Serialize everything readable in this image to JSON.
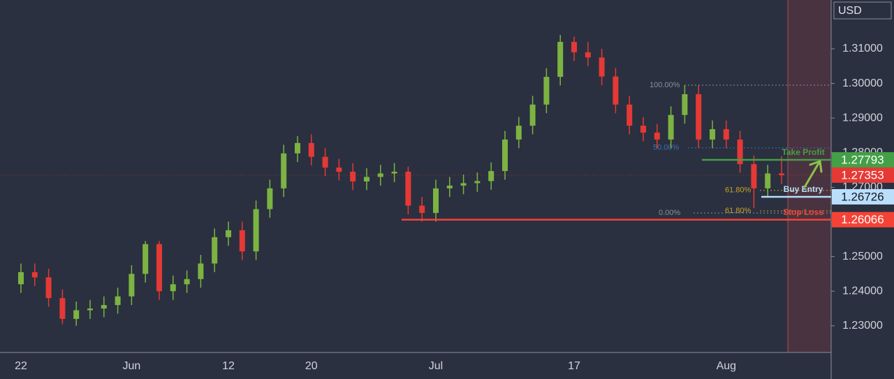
{
  "chart_data": {
    "type": "candlestick",
    "currency": "USD",
    "categories": [
      "22",
      null,
      null,
      null,
      null,
      null,
      null,
      null,
      "Jun",
      null,
      null,
      null,
      null,
      null,
      null,
      "12",
      null,
      null,
      null,
      null,
      null,
      "20",
      null,
      null,
      null,
      null,
      null,
      null,
      null,
      null,
      "Jul",
      null,
      null,
      null,
      null,
      null,
      null,
      null,
      null,
      null,
      "17",
      null,
      null,
      null,
      null,
      null,
      null,
      null,
      null,
      null,
      null,
      "Aug",
      null,
      null,
      null,
      null
    ],
    "open": [
      1.242,
      1.2455,
      1.244,
      1.238,
      1.232,
      1.2345,
      1.235,
      1.236,
      1.2385,
      1.245,
      1.2536,
      1.24,
      1.242,
      1.2435,
      1.248,
      1.2556,
      1.2576,
      1.2515,
      1.2637,
      1.2697,
      1.2798,
      1.2828,
      1.2788,
      1.2757,
      1.2745,
      1.2717,
      1.273,
      1.274,
      1.2745,
      1.2647,
      1.2626,
      1.2697,
      1.2705,
      1.2712,
      1.2718,
      1.2747,
      1.2838,
      1.2878,
      1.2939,
      1.3019,
      1.312,
      1.309,
      1.3075,
      1.302,
      1.2939,
      1.2878,
      1.2858,
      1.2838,
      1.2909,
      1.2969,
      1.2838,
      1.2868,
      1.2838,
      1.2767,
      1.2697,
      1.274
    ],
    "high": [
      1.248,
      1.248,
      1.2465,
      1.2405,
      1.237,
      1.2375,
      1.2385,
      1.241,
      1.2475,
      1.2545,
      1.2545,
      1.2445,
      1.246,
      1.2505,
      1.2581,
      1.2601,
      1.2601,
      1.2662,
      1.2722,
      1.2823,
      1.2848,
      1.2853,
      1.2813,
      1.2782,
      1.277,
      1.2755,
      1.2765,
      1.277,
      1.276,
      1.2672,
      1.2722,
      1.273,
      1.2737,
      1.2743,
      1.2772,
      1.2863,
      1.2903,
      1.2964,
      1.3044,
      1.314,
      1.3135,
      1.312,
      1.31,
      1.3045,
      1.2964,
      1.2903,
      1.2883,
      1.2934,
      1.2995,
      1.2994,
      1.2893,
      1.2893,
      1.2863,
      1.2792,
      1.2765,
      1.279
    ],
    "low": [
      1.2395,
      1.2415,
      1.2355,
      1.2305,
      1.23,
      1.232,
      1.2325,
      1.2335,
      1.236,
      1.2425,
      1.2375,
      1.2375,
      1.2395,
      1.241,
      1.2455,
      1.2531,
      1.249,
      1.249,
      1.2612,
      1.2672,
      1.2773,
      1.2763,
      1.2732,
      1.272,
      1.2692,
      1.2692,
      1.2705,
      1.2715,
      1.2622,
      1.2601,
      1.2601,
      1.2672,
      1.268,
      1.2687,
      1.2693,
      1.2722,
      1.2813,
      1.2853,
      1.2914,
      1.2994,
      1.3065,
      1.305,
      1.2995,
      1.2914,
      1.2853,
      1.2833,
      1.2813,
      1.2813,
      1.2884,
      1.2813,
      1.2813,
      1.2813,
      1.2742,
      1.264,
      1.2672,
      1.271
    ],
    "close": [
      1.2455,
      1.244,
      1.238,
      1.232,
      1.2345,
      1.235,
      1.236,
      1.2385,
      1.245,
      1.2536,
      1.24,
      1.242,
      1.2435,
      1.248,
      1.2556,
      1.2576,
      1.2515,
      1.2637,
      1.2697,
      1.2798,
      1.2828,
      1.2788,
      1.2757,
      1.2745,
      1.2717,
      1.273,
      1.274,
      1.2745,
      1.2647,
      1.2626,
      1.2697,
      1.2705,
      1.2712,
      1.2718,
      1.2747,
      1.2838,
      1.2878,
      1.2939,
      1.3019,
      1.312,
      1.309,
      1.3075,
      1.302,
      1.2939,
      1.2878,
      1.2858,
      1.2838,
      1.2909,
      1.2969,
      1.2838,
      1.2868,
      1.2838,
      1.2767,
      1.2697,
      1.274,
      1.2735
    ],
    "up_color": "#7cb342",
    "down_color": "#e53935",
    "ylim": [
      1.2223,
      1.3241
    ],
    "yticks": [
      {
        "value": 1.23,
        "label": "1.23000"
      },
      {
        "value": 1.24,
        "label": "1.24000"
      },
      {
        "value": 1.25,
        "label": "1.25000"
      },
      {
        "value": 1.26,
        "label": "1.26000"
      },
      {
        "value": 1.27,
        "label": "1.27000"
      },
      {
        "value": 1.28,
        "label": "1.28000"
      },
      {
        "value": 1.29,
        "label": "1.29000"
      },
      {
        "value": 1.3,
        "label": "1.30000"
      },
      {
        "value": 1.31,
        "label": "1.31000"
      }
    ],
    "current_price": 1.27353,
    "current_color": "#e53935",
    "levels": [
      {
        "name": "Take Profit",
        "value": 1.27793,
        "color": "#43a047"
      },
      {
        "name": "Buy Entry",
        "value": 1.26726,
        "color": "#bbdefb"
      },
      {
        "name": "Stop Loss",
        "value": 1.26066,
        "color": "#f44336"
      }
    ],
    "fib": [
      {
        "label": "100.00%",
        "value": 1.2995,
        "color": "#8a8f9c"
      },
      {
        "label": "50.00%",
        "value": 1.2814,
        "color": "#3f6fb0"
      },
      {
        "label": "61.80%",
        "value": 1.2691,
        "color": "#c9a227"
      },
      {
        "label": "61.80%",
        "value": 1.2632,
        "color": "#c9a227"
      },
      {
        "label": "0.00%",
        "value": 1.2626,
        "color": "#8a8f9c"
      }
    ]
  }
}
